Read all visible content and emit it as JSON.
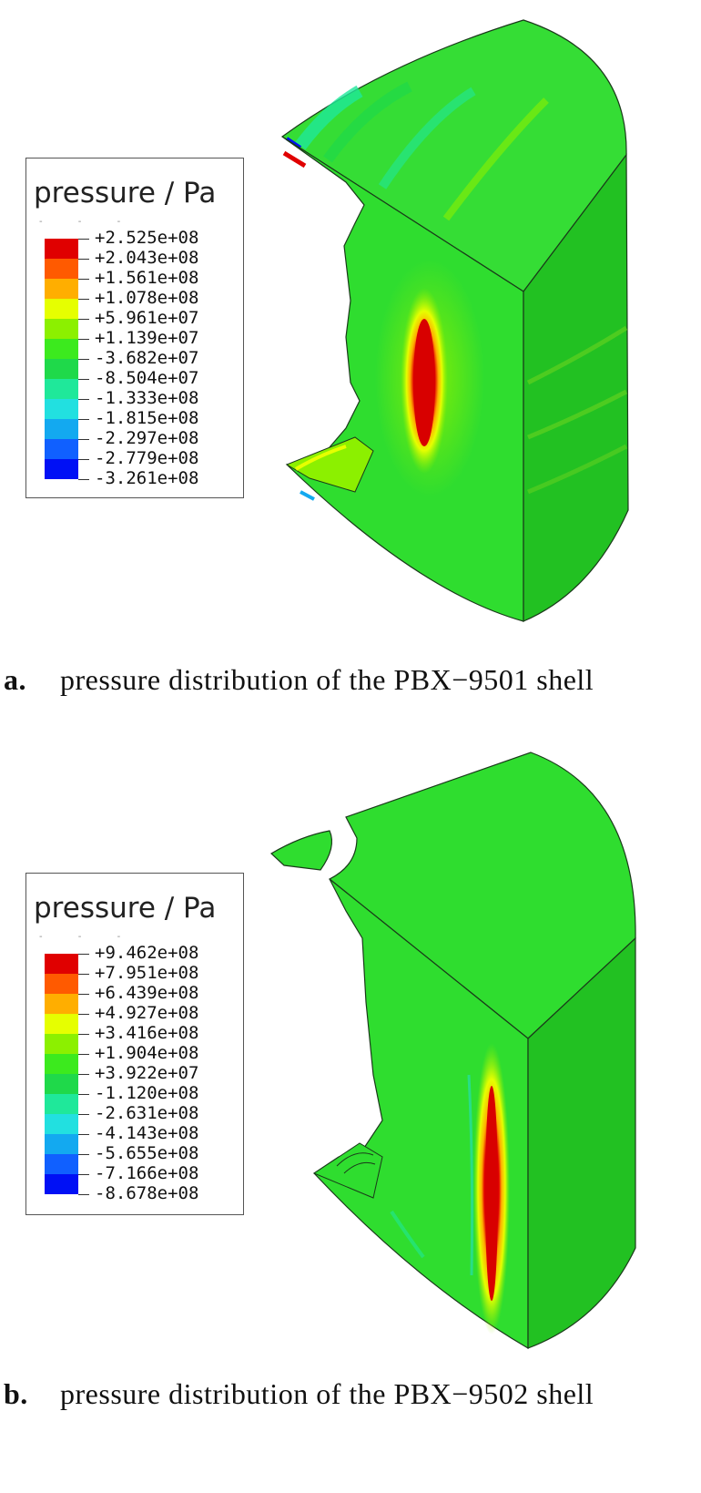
{
  "colors": {
    "contour_scale": [
      "#e00000",
      "#ff5a00",
      "#ffae00",
      "#e6ff00",
      "#8cf000",
      "#3cea1e",
      "#1fd94a",
      "#1fe89a",
      "#22e0e0",
      "#13a9f0",
      "#1060ff",
      "#0010f5"
    ],
    "model_base": "#2fdd2f",
    "model_side": "#22c122",
    "edge": "#1a3a1a"
  },
  "panels": [
    {
      "id": "a",
      "legend_title": "pressure / Pa",
      "legend_values": [
        "+2.525e+08",
        "+2.043e+08",
        "+1.561e+08",
        "+1.078e+08",
        "+5.961e+07",
        "+1.139e+07",
        "-3.682e+07",
        "-8.504e+07",
        "-1.333e+08",
        "-1.815e+08",
        "-2.297e+08",
        "-2.779e+08",
        "-3.261e+08"
      ],
      "caption_letter": "a.",
      "caption_text": "pressure distribution of the PBX−9501 shell"
    },
    {
      "id": "b",
      "legend_title": "pressure / Pa",
      "legend_values": [
        "+9.462e+08",
        "+7.951e+08",
        "+6.439e+08",
        "+4.927e+08",
        "+3.416e+08",
        "+1.904e+08",
        "+3.922e+07",
        "-1.120e+08",
        "-2.631e+08",
        "-4.143e+08",
        "-5.655e+08",
        "-7.166e+08",
        "-8.678e+08"
      ],
      "caption_letter": "b.",
      "caption_text": "pressure distribution of the PBX−9502 shell"
    }
  ]
}
